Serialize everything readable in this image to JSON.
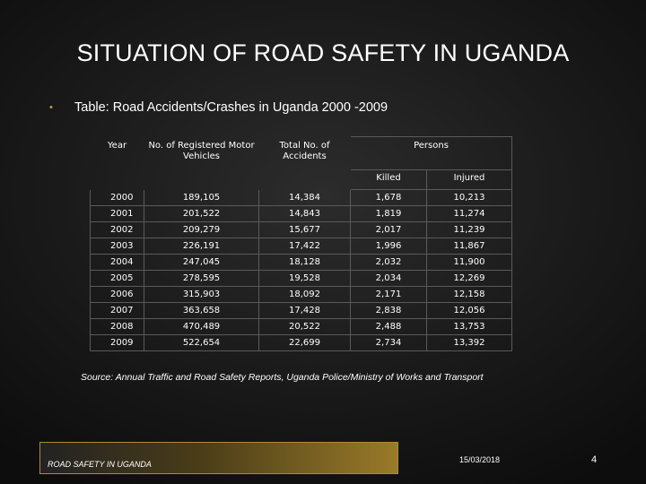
{
  "slide": {
    "title": "SITUATION OF ROAD SAFETY IN UGANDA",
    "bullet": "Table: Road Accidents/Crashes in Uganda 2000 -2009",
    "accent_color": "#c8a030"
  },
  "table": {
    "headers": {
      "year": "Year",
      "vehicles": "No. of Registered Motor Vehicles",
      "accidents": "Total No. of Accidents",
      "persons": "Persons",
      "killed": "Killed",
      "injured": "Injured"
    },
    "rows": [
      {
        "year": "2000",
        "vehicles": "189,105",
        "accidents": "14,384",
        "killed": "1,678",
        "injured": "10,213"
      },
      {
        "year": "2001",
        "vehicles": "201,522",
        "accidents": "14,843",
        "killed": "1,819",
        "injured": "11,274"
      },
      {
        "year": "2002",
        "vehicles": "209,279",
        "accidents": "15,677",
        "killed": "2,017",
        "injured": "11,239"
      },
      {
        "year": "2003",
        "vehicles": "226,191",
        "accidents": "17,422",
        "killed": "1,996",
        "injured": "11,867"
      },
      {
        "year": "2004",
        "vehicles": "247,045",
        "accidents": "18,128",
        "killed": "2,032",
        "injured": "11,900"
      },
      {
        "year": "2005",
        "vehicles": "278,595",
        "accidents": "19,528",
        "killed": "2,034",
        "injured": "12,269"
      },
      {
        "year": "2006",
        "vehicles": "315,903",
        "accidents": "18,092",
        "killed": "2,171",
        "injured": "12,158"
      },
      {
        "year": "2007",
        "vehicles": "363,658",
        "accidents": "17,428",
        "killed": "2,838",
        "injured": "12,056"
      },
      {
        "year": "2008",
        "vehicles": "470,489",
        "accidents": "20,522",
        "killed": "2,488",
        "injured": "13,753"
      },
      {
        "year": "2009",
        "vehicles": "522,654",
        "accidents": "22,699",
        "killed": "2,734",
        "injured": "13,392"
      }
    ]
  },
  "source": "Source: Annual Traffic and Road Safety Reports, Uganda Police/Ministry of Works and Transport",
  "footer": {
    "label": "ROAD SAFETY IN UGANDA",
    "date": "15/03/2018",
    "page": "4"
  }
}
